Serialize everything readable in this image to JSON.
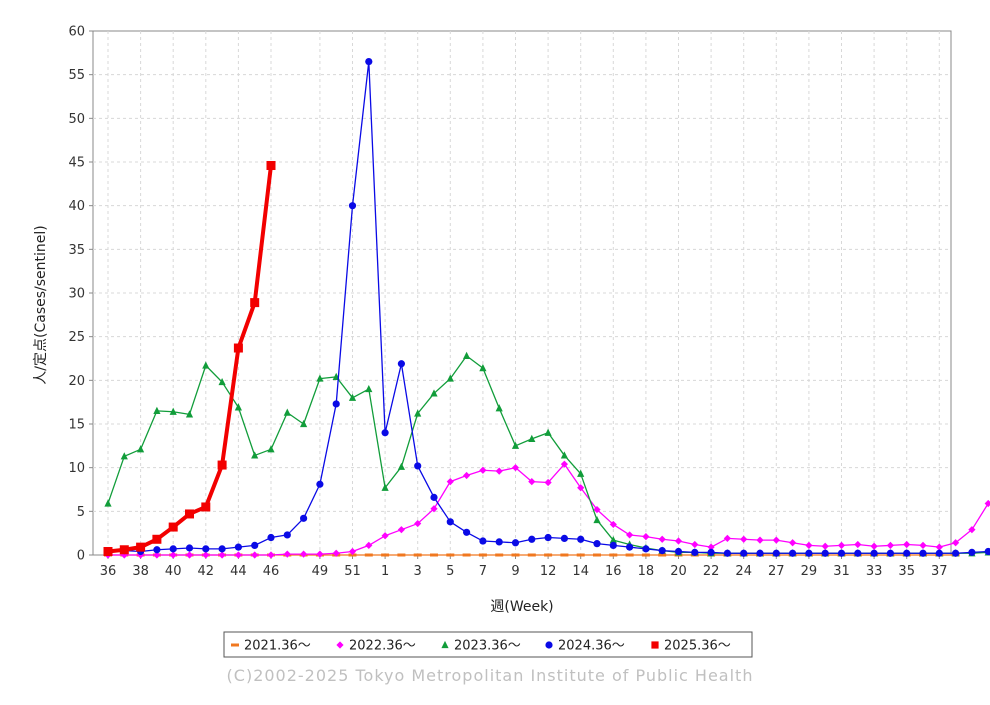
{
  "chart_data": {
    "type": "line",
    "xlabel": "週(Week)",
    "ylabel": "人/定点(Cases/sentinel)",
    "ylim": [
      0,
      60
    ],
    "yticks": [
      0,
      5,
      10,
      15,
      20,
      25,
      30,
      35,
      40,
      45,
      50,
      55,
      60
    ],
    "xticks": [
      "36",
      "38",
      "40",
      "42",
      "44",
      "46",
      "49",
      "51",
      "1",
      "3",
      "5",
      "7",
      "9",
      "12",
      "14",
      "16",
      "18",
      "20",
      "22",
      "24",
      "27",
      "29",
      "31",
      "33",
      "35",
      "37"
    ],
    "grid": true,
    "legend_position": "bottom",
    "series": [
      {
        "name": "2021.36〜",
        "color": "#f07820",
        "marker": "dash",
        "values": [
          0,
          0,
          0,
          0,
          0,
          0,
          0,
          0,
          0,
          0,
          0,
          0,
          0,
          0,
          0,
          0,
          0,
          0,
          0,
          0,
          0,
          0,
          0,
          0,
          0,
          0,
          0,
          0,
          0,
          0,
          0,
          0,
          0,
          0,
          0,
          0,
          0,
          0,
          0,
          0,
          0,
          0,
          0,
          0,
          0,
          0,
          0,
          0,
          0,
          0,
          0,
          0,
          0
        ]
      },
      {
        "name": "2022.36〜",
        "color": "#ff00ff",
        "marker": "diamond",
        "values": [
          0,
          0,
          0,
          0,
          0,
          0,
          0,
          0,
          0,
          0,
          0,
          0.1,
          0.1,
          0.1,
          0.2,
          0.4,
          1.1,
          2.2,
          2.9,
          3.6,
          5.3,
          8.4,
          9.1,
          9.7,
          9.6,
          10.0,
          8.4,
          8.3,
          10.4,
          7.7,
          5.2,
          3.5,
          2.3,
          2.1,
          1.8,
          1.6,
          1.2,
          0.9,
          1.9,
          1.8,
          1.7,
          1.7,
          1.4,
          1.1,
          1.0,
          1.1,
          1.2,
          1.0,
          1.1,
          1.2,
          1.1,
          0.9,
          1.4,
          2.9,
          5.9
        ]
      },
      {
        "name": "2023.36〜",
        "color": "#119d3a",
        "marker": "triangle",
        "values": [
          5.9,
          11.3,
          12.1,
          16.5,
          16.4,
          16.1,
          21.7,
          19.8,
          16.9,
          11.4,
          12.1,
          16.3,
          15.0,
          20.2,
          20.4,
          18.0,
          19.0,
          7.7,
          10.1,
          16.2,
          18.5,
          20.2,
          22.8,
          21.4,
          16.8,
          12.5,
          13.3,
          14.0,
          11.4,
          9.3,
          4.0,
          1.7,
          1.2,
          0.8,
          0.5,
          0.3,
          0.3,
          0.2,
          0.2,
          0.2,
          0.2,
          0.2,
          0.2,
          0.2,
          0.2,
          0.2,
          0.2,
          0.2,
          0.2,
          0.2,
          0.2,
          0.2,
          0.2,
          0.2,
          0.3
        ]
      },
      {
        "name": "2024.36〜",
        "color": "#0a0ae6",
        "marker": "circle",
        "values": [
          0.4,
          0.5,
          0.4,
          0.6,
          0.7,
          0.8,
          0.7,
          0.7,
          0.9,
          1.1,
          2.0,
          2.3,
          4.2,
          8.1,
          17.3,
          40.0,
          56.5,
          14.0,
          21.9,
          10.2,
          6.6,
          3.8,
          2.6,
          1.6,
          1.5,
          1.4,
          1.8,
          2.0,
          1.9,
          1.8,
          1.3,
          1.1,
          0.9,
          0.7,
          0.5,
          0.4,
          0.3,
          0.3,
          0.2,
          0.2,
          0.2,
          0.2,
          0.2,
          0.2,
          0.2,
          0.2,
          0.2,
          0.2,
          0.2,
          0.2,
          0.2,
          0.2,
          0.2,
          0.3,
          0.4
        ]
      },
      {
        "name": "2025.36〜",
        "color": "#f20000",
        "marker": "square",
        "values": [
          0.4,
          0.6,
          0.9,
          1.8,
          3.2,
          4.7,
          5.5,
          10.3,
          23.7,
          28.9,
          44.6
        ]
      }
    ]
  },
  "copyright": "(C)2002-2025 Tokyo Metropolitan Institute of Public Health"
}
